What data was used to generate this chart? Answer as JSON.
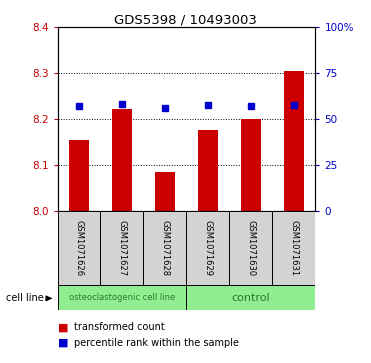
{
  "title": "GDS5398 / 10493003",
  "samples": [
    "GSM1071626",
    "GSM1071627",
    "GSM1071628",
    "GSM1071629",
    "GSM1071630",
    "GSM1071631"
  ],
  "bar_values": [
    8.155,
    8.222,
    8.085,
    8.175,
    8.2,
    8.305
  ],
  "percentile_values": [
    8.228,
    8.232,
    8.223,
    8.23,
    8.228,
    8.23
  ],
  "ylim": [
    8.0,
    8.4
  ],
  "yticks_left": [
    8.0,
    8.1,
    8.2,
    8.3,
    8.4
  ],
  "yticks_right": [
    0,
    25,
    50,
    75,
    100
  ],
  "ytick_labels_right": [
    "0",
    "25",
    "50",
    "75",
    "100%"
  ],
  "bar_color": "#cc0000",
  "percentile_color": "#0000cc",
  "bar_width": 0.45,
  "group_labels": [
    "osteoclastogenic cell line",
    "control"
  ],
  "group_ranges": [
    [
      0,
      3
    ],
    [
      3,
      6
    ]
  ],
  "cell_line_label": "cell line",
  "legend_items": [
    {
      "label": "transformed count",
      "color": "#cc0000"
    },
    {
      "label": "percentile rank within the sample",
      "color": "#0000cc"
    }
  ],
  "background_color": "#ffffff"
}
